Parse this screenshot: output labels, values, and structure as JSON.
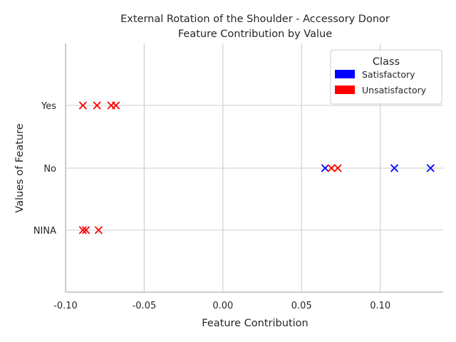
{
  "chart_data": {
    "type": "scatter",
    "title": "External Rotation of the Shoulder - Accessory Donor",
    "subtitle": "Feature Contribution by Value",
    "xlabel": "Feature Contribution",
    "ylabel": "Values of Feature",
    "xlim": [
      -0.1,
      0.14
    ],
    "x_ticks": [
      "-0.10",
      "-0.05",
      "0.00",
      "0.05",
      "0.10"
    ],
    "x_tick_values": [
      -0.1,
      -0.05,
      0.0,
      0.05,
      0.1
    ],
    "categories": [
      "Yes",
      "No",
      "NINA"
    ],
    "grid": true,
    "marker": "x",
    "legend": {
      "title": "Class",
      "placement": "top-right",
      "entries": [
        {
          "label": "Satisfactory",
          "color": "#0000ff"
        },
        {
          "label": "Unsatisfactory",
          "color": "#ff0000"
        }
      ]
    },
    "series": [
      {
        "name": "Satisfactory",
        "color": "#0000ff",
        "points": [
          {
            "x": 0.065,
            "y": "No"
          },
          {
            "x": 0.109,
            "y": "No"
          },
          {
            "x": 0.132,
            "y": "No"
          }
        ]
      },
      {
        "name": "Unsatisfactory",
        "color": "#ff0000",
        "points": [
          {
            "x": -0.089,
            "y": "Yes"
          },
          {
            "x": -0.08,
            "y": "Yes"
          },
          {
            "x": -0.071,
            "y": "Yes"
          },
          {
            "x": -0.068,
            "y": "Yes"
          },
          {
            "x": 0.069,
            "y": "No"
          },
          {
            "x": 0.073,
            "y": "No"
          },
          {
            "x": -0.089,
            "y": "NINA"
          },
          {
            "x": -0.087,
            "y": "NINA"
          },
          {
            "x": -0.079,
            "y": "NINA"
          }
        ]
      }
    ]
  }
}
